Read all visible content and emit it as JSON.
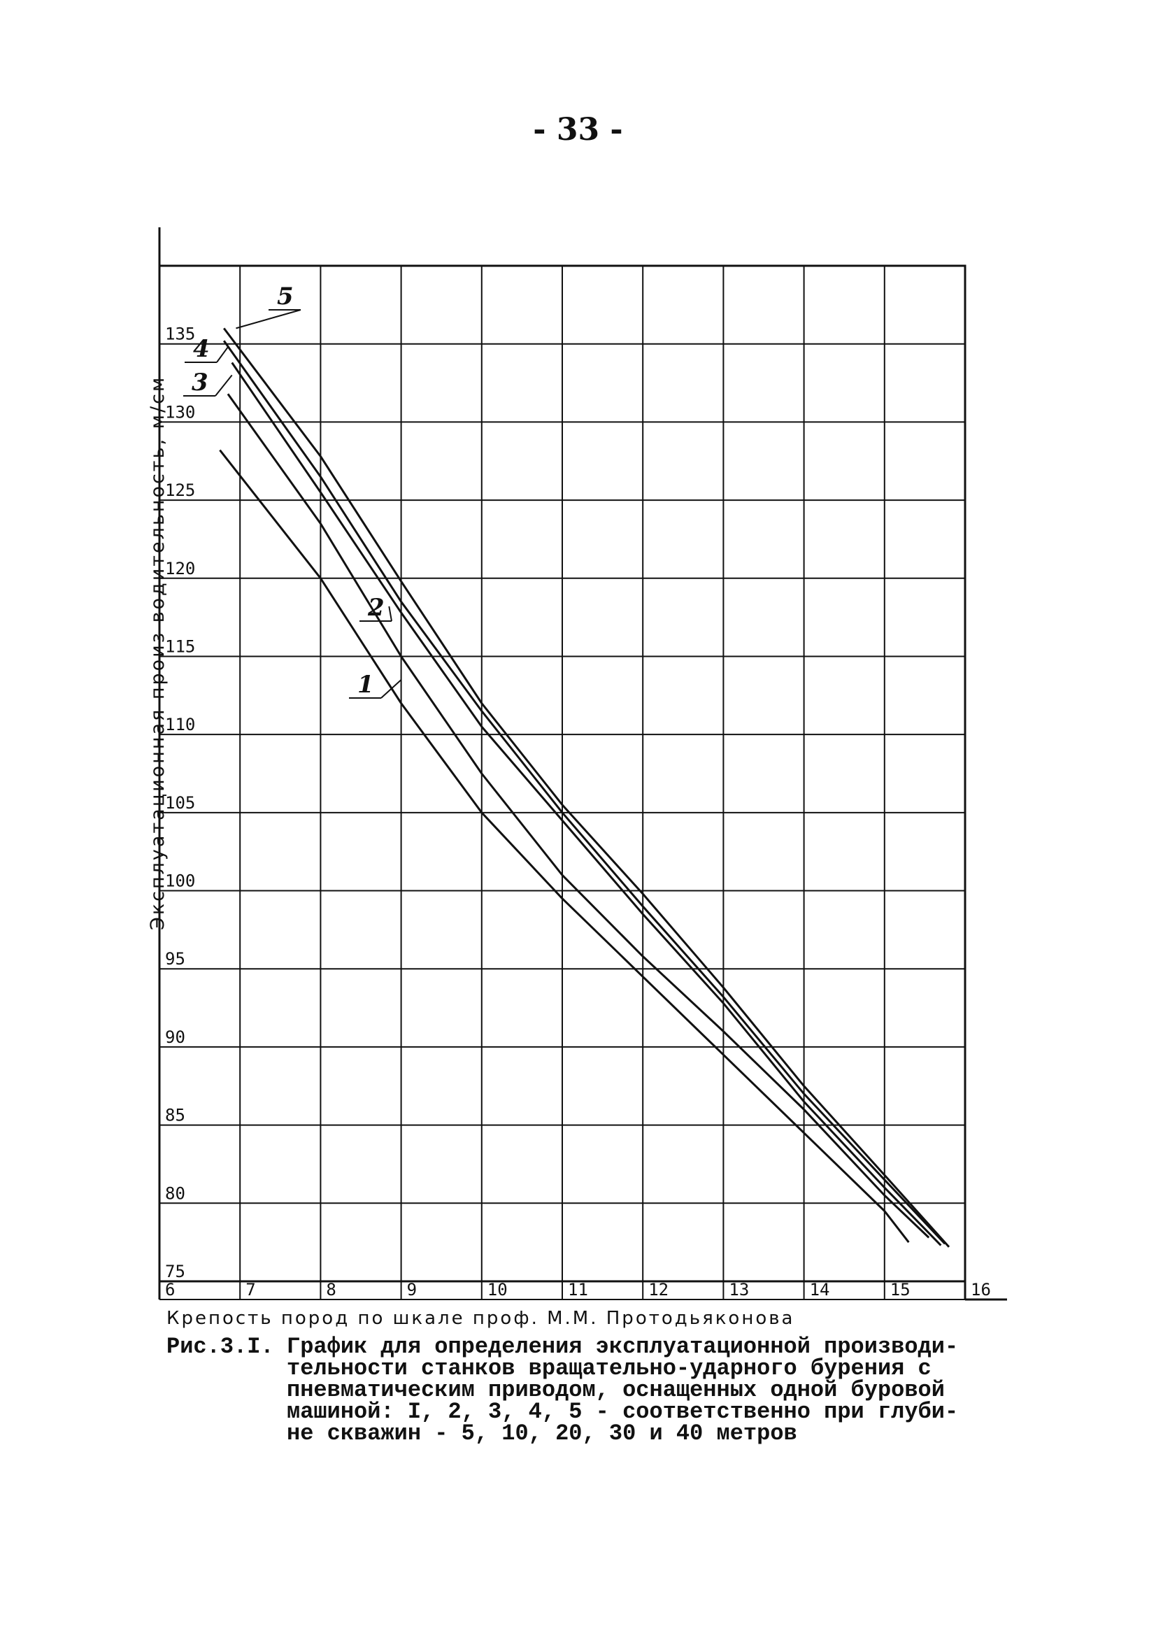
{
  "page": {
    "number": "- 33 -"
  },
  "chart_data": {
    "type": "line",
    "title": "",
    "xlabel": "Крепость пород по шкале проф. М.М. Протодьяконова",
    "ylabel": "Эксплуатационная произ водительность, м/см",
    "xlim": [
      6,
      16
    ],
    "ylim": [
      75,
      140
    ],
    "x_ticks": [
      "6",
      "7",
      "8",
      "9",
      "10",
      "11",
      "12",
      "13",
      "14",
      "15",
      "16"
    ],
    "y_ticks": [
      "75",
      "80",
      "85",
      "90",
      "95",
      "100",
      "105",
      "110",
      "115",
      "120",
      "125",
      "130",
      "135"
    ],
    "grid": true,
    "series": [
      {
        "name": "1",
        "x": [
          6.75,
          8,
          9,
          10,
          11,
          12,
          13,
          14,
          15,
          15.3
        ],
        "y": [
          128.2,
          120,
          112,
          105,
          99.5,
          94.5,
          89.5,
          84.5,
          79.5,
          77.5
        ]
      },
      {
        "name": "2",
        "x": [
          6.85,
          8,
          9,
          10,
          11,
          12,
          13,
          14,
          15,
          15.55
        ],
        "y": [
          131.8,
          123.5,
          115,
          107.5,
          101,
          95.8,
          91,
          86,
          80.5,
          77.8
        ]
      },
      {
        "name": "3",
        "x": [
          6.9,
          8,
          9,
          10,
          11,
          12,
          13,
          14,
          15,
          15.7
        ],
        "y": [
          133.8,
          125.5,
          117.8,
          110.5,
          104.5,
          98.5,
          92.8,
          86.5,
          81,
          77.3
        ]
      },
      {
        "name": "4",
        "x": [
          6.8,
          8,
          9,
          10,
          11,
          12,
          13,
          14,
          15,
          15.75
        ],
        "y": [
          135.2,
          126.5,
          118.5,
          111.5,
          105,
          99,
          93.2,
          87,
          81.5,
          77.4
        ]
      },
      {
        "name": "5",
        "x": [
          6.8,
          8,
          9,
          10,
          11,
          12,
          13,
          14,
          15,
          15.8
        ],
        "y": [
          136,
          127.8,
          119.8,
          112,
          105.5,
          99.8,
          93.8,
          87.5,
          81.8,
          77.2
        ]
      }
    ]
  },
  "caption": {
    "lead": "Рис.3.I.",
    "body": "График для определения эксплуатационной производи-\nтельности станков вращательно-ударного бурения с\nпневматическим приводом, оснащенных одной буровой\nмашиной: I, 2, 3, 4, 5 - соответственно при глуби-\nне скважин - 5, 10, 20, 30 и 40 метров"
  }
}
